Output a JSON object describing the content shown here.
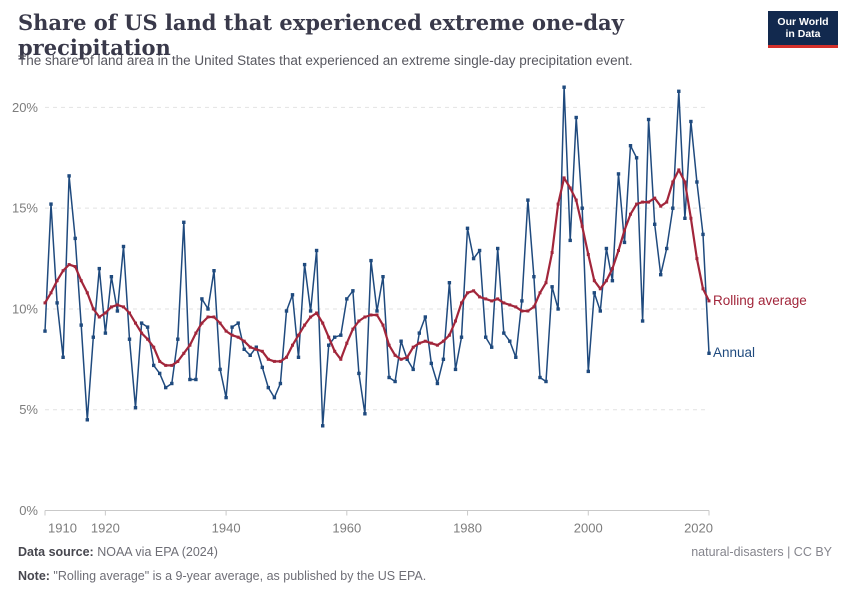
{
  "header": {
    "title": "Share of US land that experienced extreme one-day precipitation",
    "subtitle": "The share of land area in the United States that experienced an extreme single-day precipitation event."
  },
  "logo": {
    "line1": "Our World",
    "line2": "in Data",
    "box_color": "#12294e",
    "stripe_color": "#d4302b"
  },
  "legend": {
    "rolling_label": "Rolling average",
    "annual_label": "Annual"
  },
  "footer": {
    "source_label": "Data source:",
    "source_value": " NOAA via EPA (2024)",
    "license_text": "natural-disasters | CC BY",
    "note_label": "Note:",
    "note_value": " \"Rolling average\" is a 9-year average, as published by the US EPA."
  },
  "chart_data": {
    "type": "line",
    "title": "Share of US land that experienced extreme one-day precipitation",
    "xlabel": "",
    "ylabel": "",
    "grid": "horizontal dashed",
    "legend_position": "end-of-line labels",
    "x_range": [
      1910,
      2020
    ],
    "ylim": [
      0,
      21
    ],
    "yticks": [
      0,
      5,
      10,
      15,
      20
    ],
    "ytick_labels": [
      "0%",
      "5%",
      "10%",
      "15%",
      "20%"
    ],
    "xticks": [
      1910,
      1920,
      1940,
      1960,
      1980,
      2000,
      2020
    ],
    "years": [
      1910,
      1911,
      1912,
      1913,
      1914,
      1915,
      1916,
      1917,
      1918,
      1919,
      1920,
      1921,
      1922,
      1923,
      1924,
      1925,
      1926,
      1927,
      1928,
      1929,
      1930,
      1931,
      1932,
      1933,
      1934,
      1935,
      1936,
      1937,
      1938,
      1939,
      1940,
      1941,
      1942,
      1943,
      1944,
      1945,
      1946,
      1947,
      1948,
      1949,
      1950,
      1951,
      1952,
      1953,
      1954,
      1955,
      1956,
      1957,
      1958,
      1959,
      1960,
      1961,
      1962,
      1963,
      1964,
      1965,
      1966,
      1967,
      1968,
      1969,
      1970,
      1971,
      1972,
      1973,
      1974,
      1975,
      1976,
      1977,
      1978,
      1979,
      1980,
      1981,
      1982,
      1983,
      1984,
      1985,
      1986,
      1987,
      1988,
      1989,
      1990,
      1991,
      1992,
      1993,
      1994,
      1995,
      1996,
      1997,
      1998,
      1999,
      2000,
      2001,
      2002,
      2003,
      2004,
      2005,
      2006,
      2007,
      2008,
      2009,
      2010,
      2011,
      2012,
      2013,
      2014,
      2015,
      2016,
      2017,
      2018,
      2019,
      2020
    ],
    "series": [
      {
        "name": "Annual",
        "color": "#1f4a7e",
        "values": [
          8.9,
          15.2,
          10.3,
          7.6,
          16.6,
          13.5,
          9.2,
          4.5,
          8.6,
          12.0,
          8.8,
          11.6,
          9.9,
          13.1,
          8.5,
          5.1,
          9.3,
          9.1,
          7.2,
          6.8,
          6.1,
          6.3,
          8.5,
          14.3,
          6.5,
          6.5,
          10.5,
          10.0,
          11.9,
          7.0,
          5.6,
          9.1,
          9.3,
          8.0,
          7.7,
          8.1,
          7.1,
          6.1,
          5.6,
          6.3,
          9.9,
          10.7,
          7.6,
          12.2,
          9.9,
          12.9,
          4.2,
          8.2,
          8.6,
          8.7,
          10.5,
          10.9,
          6.8,
          4.8,
          12.4,
          9.9,
          11.6,
          6.6,
          6.4,
          8.4,
          7.5,
          7.0,
          8.8,
          9.6,
          7.3,
          6.3,
          7.5,
          11.3,
          7.0,
          8.6,
          14.0,
          12.5,
          12.9,
          8.6,
          8.1,
          13.0,
          8.8,
          8.4,
          7.6,
          10.4,
          15.4,
          11.6,
          6.6,
          6.4,
          11.1,
          10.0,
          21.0,
          13.4,
          19.5,
          15.0,
          6.9,
          10.8,
          9.9,
          13.0,
          11.4,
          16.7,
          13.3,
          18.1,
          17.5,
          9.4,
          19.4,
          14.2,
          11.7,
          13.0,
          15.0,
          20.8,
          14.5,
          19.3,
          16.3,
          13.7,
          7.8
        ]
      },
      {
        "name": "Rolling average",
        "color": "#a2263b",
        "values": [
          10.3,
          10.8,
          11.4,
          11.9,
          12.2,
          12.1,
          11.4,
          10.8,
          10.0,
          9.6,
          9.8,
          10.1,
          10.2,
          10.1,
          9.8,
          9.3,
          8.8,
          8.5,
          8.1,
          7.4,
          7.2,
          7.2,
          7.4,
          7.8,
          8.2,
          8.8,
          9.3,
          9.6,
          9.6,
          9.3,
          8.9,
          8.7,
          8.6,
          8.4,
          8.1,
          8.0,
          7.9,
          7.5,
          7.4,
          7.4,
          7.6,
          8.2,
          8.7,
          9.2,
          9.6,
          9.8,
          9.3,
          8.6,
          7.9,
          7.5,
          8.3,
          9.0,
          9.4,
          9.6,
          9.7,
          9.7,
          9.2,
          8.2,
          7.7,
          7.5,
          7.6,
          8.1,
          8.3,
          8.4,
          8.3,
          8.2,
          8.4,
          8.7,
          9.4,
          10.3,
          10.8,
          10.9,
          10.6,
          10.5,
          10.4,
          10.5,
          10.3,
          10.2,
          10.1,
          9.9,
          9.9,
          10.1,
          10.8,
          11.3,
          12.8,
          15.2,
          16.5,
          16.0,
          15.4,
          14.1,
          12.7,
          11.4,
          11.0,
          11.4,
          12.0,
          12.9,
          13.9,
          14.7,
          15.2,
          15.3,
          15.3,
          15.5,
          15.1,
          15.3,
          16.3,
          16.9,
          16.3,
          14.5,
          12.5,
          11.0,
          10.4
        ]
      }
    ]
  }
}
